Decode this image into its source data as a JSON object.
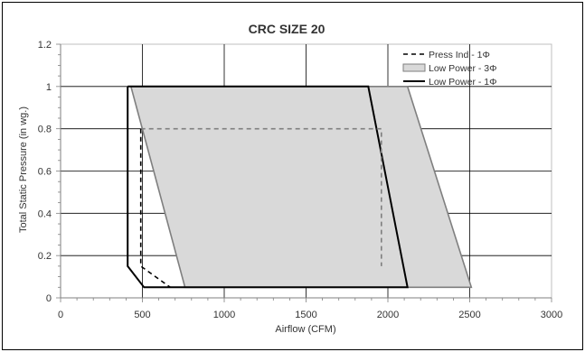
{
  "chart_data": {
    "type": "area",
    "title": "CRC SIZE 20",
    "xlabel": "Airflow (CFM)",
    "ylabel": "Total Static Pressure (in wg.)",
    "xlim": [
      0,
      3000
    ],
    "ylim": [
      0,
      1.2
    ],
    "x_ticks": [
      "0",
      "500",
      "1000",
      "1500",
      "2000",
      "2500",
      "3000"
    ],
    "y_ticks": [
      "0",
      "0.2",
      "0.4",
      "0.6",
      "0.8",
      "1",
      "1.2"
    ],
    "grid": true,
    "legend_position": "top-right",
    "series": [
      {
        "name": "Press Ind - 1Φ",
        "style": "dashed",
        "color": "#000000",
        "points": [
          [
            490,
            0.8
          ],
          [
            1960,
            0.8
          ],
          [
            1960,
            0.15
          ],
          [
            490,
            0.15
          ],
          [
            670,
            0.05
          ]
        ]
      },
      {
        "name": "Low Power - 3Φ",
        "style": "filled",
        "color": "#7f7f7f",
        "fill": "#d9d9d9",
        "points": [
          [
            430,
            1.0
          ],
          [
            2120,
            1.0
          ],
          [
            2510,
            0.05
          ],
          [
            760,
            0.05
          ]
        ]
      },
      {
        "name": "Low Power - 1Φ",
        "style": "solid",
        "color": "#000000",
        "points": [
          [
            410,
            1.0
          ],
          [
            1880,
            1.0
          ],
          [
            2120,
            0.05
          ],
          [
            510,
            0.05
          ],
          [
            410,
            0.15
          ]
        ]
      }
    ]
  }
}
